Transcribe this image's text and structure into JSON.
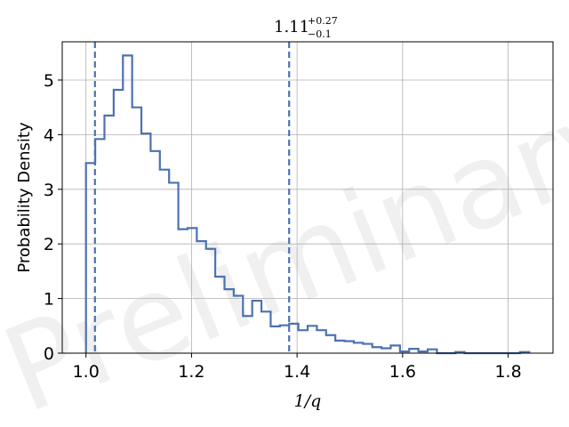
{
  "chart_data": {
    "type": "histogram",
    "xlabel": "1/q",
    "ylabel": "Probability Density",
    "xlim": [
      0.955,
      1.885
    ],
    "ylim": [
      0,
      5.7
    ],
    "xticks": [
      1.0,
      1.2,
      1.4,
      1.6,
      1.8
    ],
    "xtick_labels": [
      "1.0",
      "1.2",
      "1.4",
      "1.6",
      "1.8"
    ],
    "yticks": [
      0,
      1,
      2,
      3,
      4,
      5
    ],
    "ytick_labels": [
      "0",
      "1",
      "2",
      "3",
      "4",
      "5"
    ],
    "grid": true,
    "line_color": "#4c72b0",
    "watermark": "Preliminary",
    "annotation": {
      "median": "1.11",
      "plus": "+0.27",
      "minus": "−0.1"
    },
    "vlines": [
      1.017,
      1.385
    ],
    "bin_edges": [
      1.0,
      1.0175,
      1.035,
      1.0525,
      1.07,
      1.0875,
      1.105,
      1.1225,
      1.14,
      1.1575,
      1.175,
      1.1925,
      1.21,
      1.2275,
      1.245,
      1.2625,
      1.28,
      1.2975,
      1.315,
      1.3325,
      1.35,
      1.3675,
      1.385,
      1.4025,
      1.42,
      1.4375,
      1.455,
      1.4725,
      1.49,
      1.5075,
      1.525,
      1.5425,
      1.56,
      1.5775,
      1.595,
      1.6125,
      1.63,
      1.6475,
      1.665,
      1.6825,
      1.7,
      1.7175,
      1.735,
      1.7525,
      1.77,
      1.7875,
      1.805,
      1.8225,
      1.84
    ],
    "values": [
      3.48,
      3.92,
      4.35,
      4.82,
      5.45,
      4.5,
      4.02,
      3.7,
      3.36,
      3.12,
      2.27,
      2.29,
      2.05,
      1.91,
      1.4,
      1.17,
      1.05,
      0.68,
      0.96,
      0.76,
      0.49,
      0.51,
      0.54,
      0.42,
      0.5,
      0.42,
      0.33,
      0.23,
      0.22,
      0.19,
      0.17,
      0.11,
      0.09,
      0.14,
      0.03,
      0.08,
      0.03,
      0.07,
      0.0,
      0.0,
      0.02,
      0.0,
      0.0,
      0.0,
      0.0,
      0.0,
      0.0,
      0.02
    ]
  }
}
